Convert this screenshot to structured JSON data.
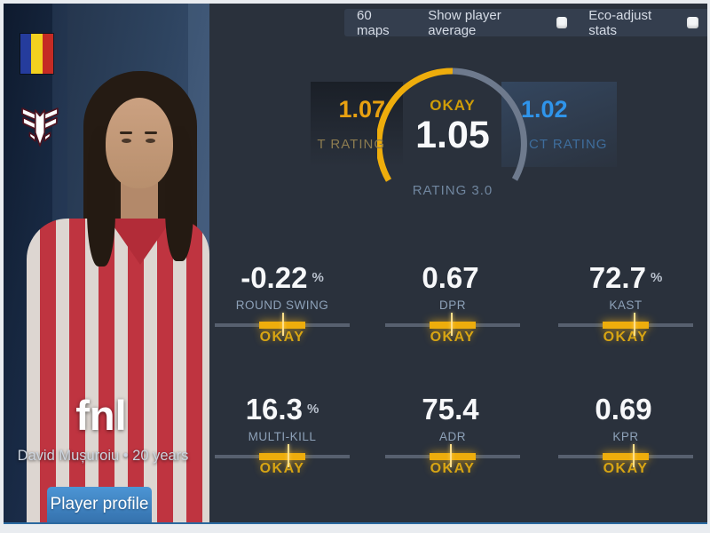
{
  "topbar": {
    "maps_label": "60 maps",
    "toggles": [
      {
        "label": "Show player average",
        "checked": false
      },
      {
        "label": "Eco-adjust stats",
        "checked": false
      }
    ]
  },
  "player": {
    "nickname": "fnl",
    "real_name": "David Mușuroiu",
    "age": "20 years",
    "details": "David Mușuroiu • 20 years",
    "profile_button": "Player profile",
    "country": "Romania",
    "team_logo": "winged-emblem"
  },
  "gauge": {
    "verdict": "OKAY",
    "value": "1.05",
    "scale": "RATING 3.0",
    "t": {
      "value": "1.07",
      "label": "T RATING"
    },
    "ct": {
      "value": "1.02",
      "label": "CT RATING"
    }
  },
  "stats": [
    {
      "value": "-0.22",
      "suffix": "%",
      "label": "ROUND SWING",
      "verdict": "OKAY",
      "tick": 50
    },
    {
      "value": "0.67",
      "suffix": "",
      "label": "DPR",
      "verdict": "OKAY",
      "tick": 49
    },
    {
      "value": "72.7",
      "suffix": "%",
      "label": "KAST",
      "verdict": "OKAY",
      "tick": 56
    },
    {
      "value": "16.3",
      "suffix": "%",
      "label": "MULTI-KILL",
      "verdict": "OKAY",
      "tick": 54
    },
    {
      "value": "75.4",
      "suffix": "",
      "label": "ADR",
      "verdict": "OKAY",
      "tick": 48
    },
    {
      "value": "0.69",
      "suffix": "",
      "label": "KPR",
      "verdict": "OKAY",
      "tick": 55
    }
  ],
  "colors": {
    "accent_orange": "#eead0c",
    "accent_blue": "#2f94ea",
    "verdict_orange": "#d7a514",
    "background": "#2a313c",
    "panel_navy": "#16233a",
    "button_blue": "#3f86c7"
  }
}
